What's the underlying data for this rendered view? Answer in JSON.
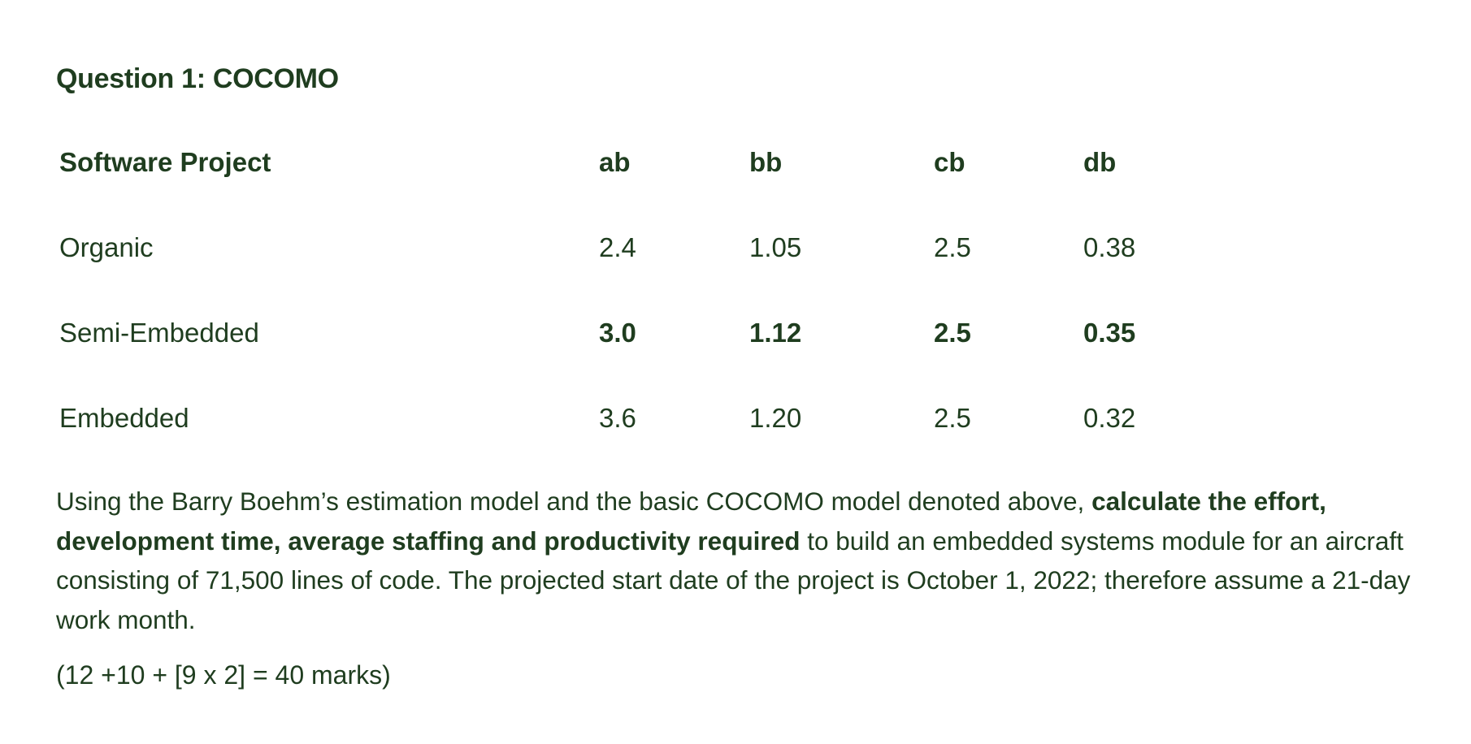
{
  "question": {
    "title": "Question 1: COCOMO"
  },
  "table": {
    "headers": [
      "Software Project",
      "ab",
      "bb",
      "cb",
      "db"
    ],
    "rows": [
      {
        "project": "Organic",
        "ab": "2.4",
        "bb": "1.05",
        "cb": "2.5",
        "db": "0.38"
      },
      {
        "project": "Semi-Embedded",
        "ab": "3.0",
        "bb": "1.12",
        "cb": "2.5",
        "db": "0.35"
      },
      {
        "project": "Embedded",
        "ab": "3.6",
        "bb": "1.20",
        "cb": "2.5",
        "db": "0.32"
      }
    ]
  },
  "body": {
    "part1": "Using the Barry Boehm’s estimation model and the basic COCOMO model denoted above, ",
    "bold1": "calculate the effort, development time, average staffing and productivity required",
    "part2": " to build an embedded systems module for an aircraft consisting of 71,500 lines of code. The projected start date of the project is October 1, 2022; therefore assume a 21-day work month."
  },
  "marks": "(12 +10 + [9 x 2] = 40 marks)",
  "colors": {
    "text": "#1f3d1f",
    "background": "#ffffff"
  }
}
